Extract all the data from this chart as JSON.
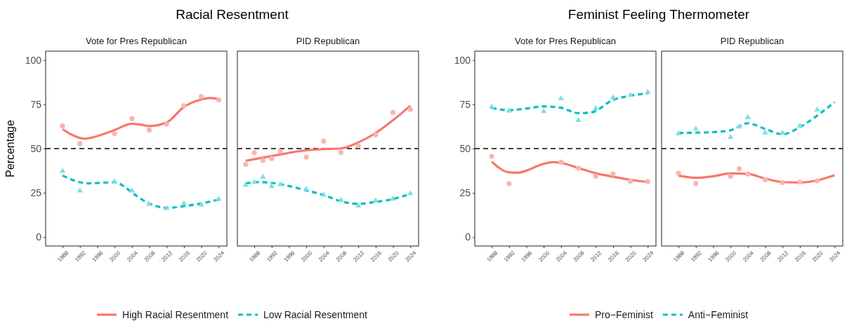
{
  "chart_data": [
    {
      "type": "line",
      "title": "Racial Resentment",
      "subtitle": "Vote for Pres Republican",
      "ylabel": "Percentage",
      "xlim": [
        1984.1,
        2025.9
      ],
      "ylim": [
        -5,
        105
      ],
      "xticks": [
        1988,
        1992,
        1996,
        2000,
        2004,
        2008,
        2012,
        2016,
        2020,
        2024
      ],
      "yticks": [
        0,
        25,
        50,
        75,
        100
      ],
      "legend": "bottom",
      "ref_lines": [
        {
          "axis": "y",
          "value": 50,
          "color": "#000000",
          "line_style": "dashed"
        }
      ],
      "series": [
        {
          "type": "scatter",
          "marker": "circle",
          "color": "#fcb4ae",
          "x": [
            1988,
            1992,
            2000,
            2004,
            2008,
            2012,
            2016,
            2020,
            2024
          ],
          "values": [
            62.8,
            52.8,
            58.4,
            66.9,
            60.5,
            63.8,
            74.2,
            79.3,
            77.5
          ]
        },
        {
          "type": "scatter",
          "marker": "triangle",
          "color": "#7fdfe1",
          "x": [
            1988,
            1992,
            2000,
            2004,
            2008,
            2012,
            2016,
            2020,
            2024
          ],
          "values": [
            37.3,
            26.2,
            31.4,
            26.2,
            18.6,
            16.2,
            19,
            18.2,
            21.5
          ]
        },
        {
          "type": "line",
          "name": "High Racial Resentment",
          "color": "#f8766d",
          "line_style": "solid",
          "x": [
            1988,
            1990,
            1993,
            1996,
            2000,
            2004,
            2006,
            2008,
            2012,
            2016,
            2020,
            2022,
            2024
          ],
          "values": [
            61,
            58,
            55.6,
            57,
            60.5,
            64,
            63.5,
            62.7,
            64.7,
            73.5,
            77.7,
            78.5,
            78
          ]
        },
        {
          "type": "line",
          "name": "Low Racial Resentment",
          "color": "#00bfc4",
          "line_style": "dashed",
          "x": [
            1988,
            1992,
            1994,
            1998,
            2000,
            2002,
            2004,
            2008,
            2012,
            2016,
            2020,
            2024
          ],
          "values": [
            34.8,
            31,
            30.4,
            30.8,
            31,
            29,
            25.2,
            19,
            16.5,
            17.5,
            19,
            21.2
          ]
        }
      ]
    },
    {
      "type": "line",
      "subtitle": "PID Republican",
      "xlim": [
        1984.1,
        2025.9
      ],
      "ylim": [
        -5,
        105
      ],
      "xticks": [
        1988,
        1992,
        1996,
        2000,
        2004,
        2008,
        2012,
        2016,
        2020,
        2024
      ],
      "yticks": [
        0,
        25,
        50,
        75,
        100
      ],
      "tick_labels": "x",
      "ref_lines": [
        {
          "axis": "y",
          "value": 50,
          "color": "#000000",
          "line_style": "dashed"
        }
      ],
      "series": [
        {
          "type": "scatter",
          "marker": "circle",
          "color": "#fcb4ae",
          "x": [
            1986,
            1988,
            1990,
            1992,
            1994,
            2000,
            2004,
            2008,
            2012,
            2016,
            2020,
            2024
          ],
          "values": [
            41.1,
            47.7,
            43.3,
            44.4,
            48.5,
            45.2,
            54.2,
            47.8,
            51.6,
            57.8,
            70.4,
            72.2
          ]
        },
        {
          "type": "scatter",
          "marker": "triangle",
          "color": "#7fdfe1",
          "x": [
            1986,
            1988,
            1990,
            1992,
            1994,
            2000,
            2004,
            2008,
            2012,
            2016,
            2020,
            2024
          ],
          "values": [
            29.4,
            31.1,
            34,
            28.7,
            29.8,
            27.1,
            23.8,
            20.9,
            17.7,
            20.6,
            21.6,
            24.6
          ]
        },
        {
          "type": "line",
          "color": "#f8766d",
          "line_style": "solid",
          "x": [
            1986,
            1992,
            2000,
            2004,
            2008,
            2012,
            2016,
            2020,
            2024
          ],
          "values": [
            43.1,
            45.8,
            49,
            49.7,
            50.1,
            53.5,
            58.8,
            66,
            74.2
          ]
        },
        {
          "type": "line",
          "color": "#00bfc4",
          "line_style": "dashed",
          "x": [
            1986,
            1989,
            1992,
            2000,
            2004,
            2008,
            2012,
            2016,
            2020,
            2024
          ],
          "values": [
            30.4,
            31.1,
            30.6,
            26.4,
            23.8,
            20.2,
            18.8,
            19.9,
            21.5,
            24.5
          ]
        }
      ]
    },
    {
      "type": "line",
      "title": "Feminist Feeling Thermometer",
      "subtitle": "Vote for Pres Republican",
      "xlim": [
        1984.1,
        2025.9
      ],
      "ylim": [
        -5,
        105
      ],
      "xticks": [
        1988,
        1992,
        1996,
        2000,
        2004,
        2008,
        2012,
        2016,
        2020,
        2024
      ],
      "yticks": [
        0,
        25,
        50,
        75,
        100
      ],
      "legend": "bottom",
      "ref_lines": [
        {
          "axis": "y",
          "value": 50,
          "color": "#000000",
          "line_style": "dashed"
        }
      ],
      "series": [
        {
          "type": "scatter",
          "marker": "circle",
          "color": "#fcb4ae",
          "x": [
            1988,
            1992,
            2004,
            2008,
            2012,
            2016,
            2020,
            2024
          ],
          "values": [
            45.6,
            30.2,
            42.3,
            39,
            34.4,
            35.7,
            31.5,
            31.4
          ]
        },
        {
          "type": "scatter",
          "marker": "triangle",
          "color": "#7fdfe1",
          "x": [
            1988,
            1992,
            2000,
            2004,
            2008,
            2012,
            2016,
            2020,
            2024
          ],
          "values": [
            73.5,
            71.3,
            71,
            78.3,
            66,
            72.6,
            78.8,
            80.2,
            81.8
          ]
        },
        {
          "type": "line",
          "name": "Pro−Feminist",
          "color": "#f8766d",
          "line_style": "solid",
          "x": [
            1988,
            1992,
            1994,
            2000,
            2002,
            2004,
            2008,
            2012,
            2016,
            2020,
            2024
          ],
          "values": [
            42.6,
            36.6,
            36.4,
            41.4,
            42.3,
            41.9,
            39,
            36.1,
            34.1,
            32.4,
            31.1
          ]
        },
        {
          "type": "line",
          "name": "Anti−Feminist",
          "color": "#00bfc4",
          "line_style": "dashed",
          "x": [
            1988,
            1992,
            1996,
            2000,
            2004,
            2008,
            2011,
            2016,
            2020,
            2024
          ],
          "values": [
            73,
            71.7,
            72.6,
            73.8,
            73,
            70,
            70.4,
            77.5,
            79.8,
            81.2
          ]
        }
      ]
    },
    {
      "type": "line",
      "subtitle": "PID Republican",
      "xlim": [
        1984.1,
        2025.9
      ],
      "ylim": [
        -5,
        105
      ],
      "xticks": [
        1988,
        1992,
        1996,
        2000,
        2004,
        2008,
        2012,
        2016,
        2020,
        2024
      ],
      "yticks": [
        0,
        25,
        50,
        75,
        100
      ],
      "tick_labels": "x",
      "ref_lines": [
        {
          "axis": "y",
          "value": 50,
          "color": "#000000",
          "line_style": "dashed"
        }
      ],
      "series": [
        {
          "type": "scatter",
          "marker": "circle",
          "color": "#fcb4ae",
          "x": [
            1988,
            1992,
            2000,
            2002,
            2004,
            2008,
            2012,
            2016,
            2020
          ],
          "values": [
            36.1,
            30.4,
            34.4,
            38.6,
            35.7,
            32.4,
            30.8,
            31.1,
            31.8
          ]
        },
        {
          "type": "scatter",
          "marker": "triangle",
          "color": "#7fdfe1",
          "x": [
            1988,
            1992,
            2000,
            2002,
            2004,
            2008,
            2012,
            2016,
            2020
          ],
          "values": [
            58.5,
            61.1,
            56.4,
            62.3,
            67.6,
            59,
            58.8,
            62.7,
            71.9
          ]
        },
        {
          "type": "line",
          "color": "#f8766d",
          "line_style": "solid",
          "x": [
            1988,
            1992,
            1996,
            2000,
            2004,
            2008,
            2012,
            2016,
            2020,
            2024
          ],
          "values": [
            34.7,
            33.5,
            34.4,
            36,
            35.7,
            33.1,
            31.1,
            30.8,
            32.1,
            35
          ]
        },
        {
          "type": "line",
          "color": "#00bfc4",
          "line_style": "dashed",
          "x": [
            1988,
            1992,
            1996,
            2000,
            2004,
            2008,
            2012,
            2016,
            2020,
            2024
          ],
          "values": [
            58.8,
            59,
            59.3,
            60.3,
            64.3,
            61.1,
            58.1,
            62.1,
            68.6,
            76.2
          ]
        }
      ]
    }
  ]
}
